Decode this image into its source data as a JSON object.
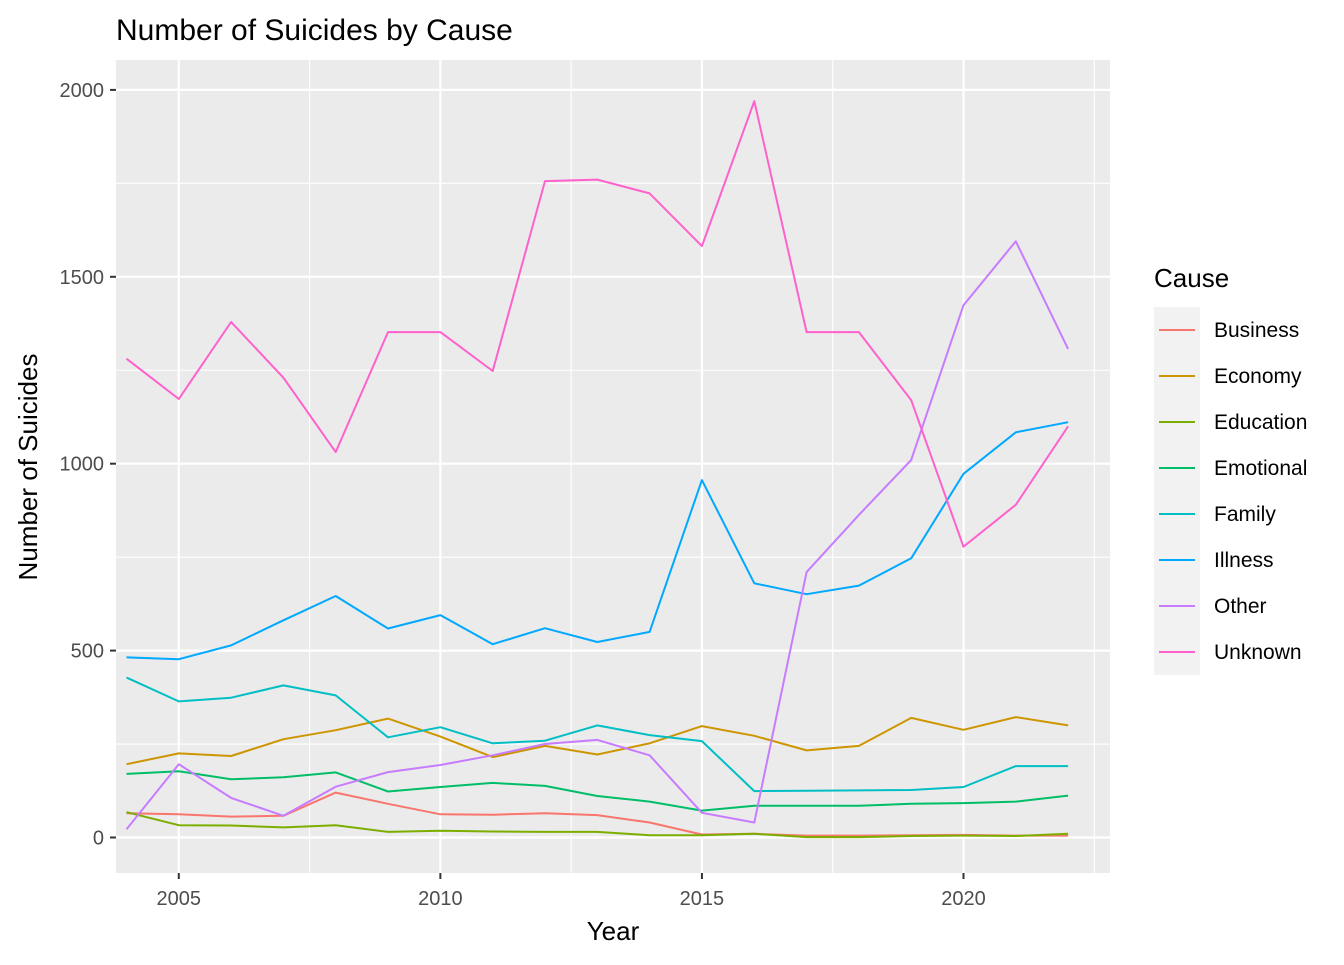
{
  "chart_data": {
    "type": "line",
    "title": "Number of Suicides by Cause",
    "xlabel": "Year",
    "ylabel": "Number of Suicides",
    "xlim": [
      2003.8,
      2022.8
    ],
    "ylim": [
      -95,
      2080
    ],
    "x_ticks": [
      2005,
      2010,
      2015,
      2020
    ],
    "y_ticks": [
      0,
      500,
      1000,
      1500,
      2000
    ],
    "grid": true,
    "background": "#EBEBEB",
    "legend_title": "Cause",
    "legend_position": "right",
    "x": [
      2004,
      2005,
      2006,
      2007,
      2008,
      2009,
      2010,
      2011,
      2012,
      2013,
      2014,
      2015,
      2016,
      2017,
      2018,
      2019,
      2020,
      2021,
      2022
    ],
    "series": [
      {
        "name": "Business",
        "color": "#F8766D",
        "values": [
          65,
          62,
          56,
          58,
          120,
          90,
          62,
          61,
          65,
          60,
          40,
          8,
          10,
          5,
          5,
          6,
          7,
          5,
          5
        ]
      },
      {
        "name": "Economy",
        "color": "#CD9600",
        "values": [
          196,
          225,
          218,
          263,
          287,
          318,
          270,
          215,
          245,
          222,
          252,
          298,
          272,
          233,
          245,
          320,
          288,
          322,
          300
        ]
      },
      {
        "name": "Education",
        "color": "#7CAE00",
        "values": [
          68,
          33,
          32,
          27,
          33,
          15,
          18,
          16,
          15,
          15,
          6,
          6,
          10,
          1,
          1,
          4,
          5,
          4,
          10
        ]
      },
      {
        "name": "Emotional",
        "color": "#00BE67",
        "values": [
          170,
          177,
          156,
          161,
          174,
          123,
          135,
          146,
          138,
          111,
          96,
          72,
          85,
          85,
          85,
          90,
          92,
          96,
          112
        ]
      },
      {
        "name": "Family",
        "color": "#00BFC4",
        "values": [
          428,
          364,
          374,
          407,
          380,
          268,
          295,
          252,
          259,
          300,
          274,
          258,
          124,
          125,
          126,
          127,
          135,
          191,
          191
        ]
      },
      {
        "name": "Illness",
        "color": "#00A9FF",
        "values": [
          482,
          477,
          514,
          581,
          646,
          559,
          595,
          517,
          560,
          523,
          550,
          956,
          680,
          651,
          674,
          747,
          973,
          1084,
          1111
        ]
      },
      {
        "name": "Other",
        "color": "#C77CFF",
        "values": [
          22,
          196,
          106,
          58,
          136,
          175,
          194,
          220,
          250,
          261,
          220,
          66,
          40,
          710,
          863,
          1010,
          1424,
          1595,
          1307
        ]
      },
      {
        "name": "Unknown",
        "color": "#FF61CC",
        "values": [
          1281,
          1173,
          1379,
          1230,
          1031,
          1352,
          1352,
          1248,
          1756,
          1760,
          1723,
          1582,
          1970,
          1352,
          1352,
          1170,
          778,
          890,
          1100
        ]
      }
    ]
  }
}
